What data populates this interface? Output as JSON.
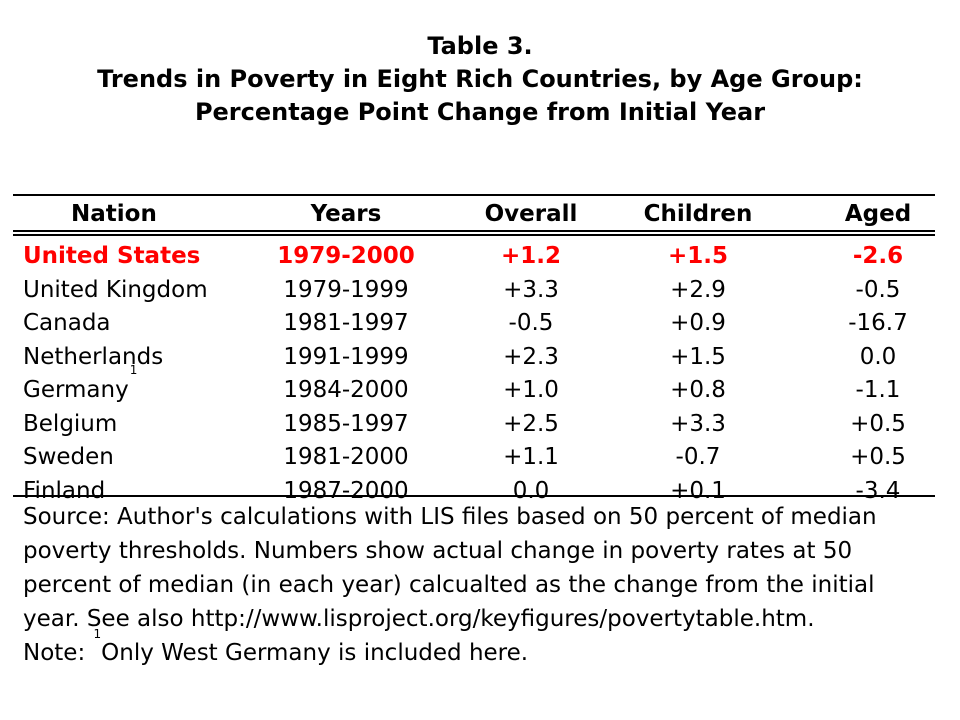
{
  "title": {
    "line1": "Table 3.",
    "line2": "Trends in Poverty in Eight Rich Countries, by Age Group:",
    "line3": "Percentage Point Change from Initial Year"
  },
  "table": {
    "highlight_color": "#ff0000",
    "headers": [
      "Nation",
      "Years",
      "Overall",
      "Children",
      "Aged"
    ],
    "rows": [
      {
        "nation": "United States",
        "footnote": "",
        "years": "1979-2000",
        "overall": "+1.2",
        "children": "+1.5",
        "aged": "-2.6",
        "highlight": true
      },
      {
        "nation": "United Kingdom",
        "footnote": "",
        "years": "1979-1999",
        "overall": "+3.3",
        "children": "+2.9",
        "aged": "-0.5",
        "highlight": false
      },
      {
        "nation": "Canada",
        "footnote": "",
        "years": "1981-1997",
        "overall": "-0.5",
        "children": "+0.9",
        "aged": "-16.7",
        "highlight": false
      },
      {
        "nation": "Netherlands",
        "footnote": "",
        "years": "1991-1999",
        "overall": "+2.3",
        "children": "+1.5",
        "aged": "0.0",
        "highlight": false
      },
      {
        "nation": "Germany",
        "footnote": "1",
        "years": "1984-2000",
        "overall": "+1.0",
        "children": "+0.8",
        "aged": "-1.1",
        "highlight": false
      },
      {
        "nation": "Belgium",
        "footnote": "",
        "years": "1985-1997",
        "overall": "+2.5",
        "children": "+3.3",
        "aged": "+0.5",
        "highlight": false
      },
      {
        "nation": "Sweden",
        "footnote": "",
        "years": "1981-2000",
        "overall": "+1.1",
        "children": "-0.7",
        "aged": "+0.5",
        "highlight": false
      },
      {
        "nation": "Finland",
        "footnote": "",
        "years": "1987-2000",
        "overall": "0.0",
        "children": "+0.1",
        "aged": "-3.4",
        "highlight": false
      }
    ]
  },
  "source": {
    "lines": [
      "Source: Author's calculations with LIS files based on 50 percent of median",
      "poverty thresholds. Numbers show actual change in poverty rates at 50",
      "percent of median (in each year) calcualted as the change from the initial",
      "year. See also http://www.lisproject.org/keyfigures/povertytable.htm."
    ],
    "note_prefix": "Note: ",
    "note_marker": "1",
    "note_text": "Only West Germany is included here."
  }
}
